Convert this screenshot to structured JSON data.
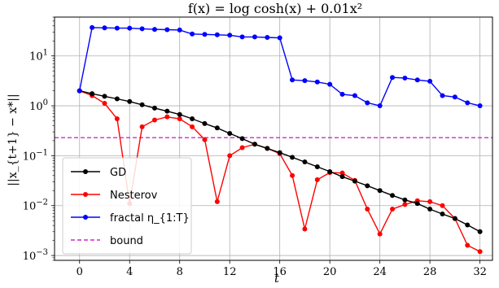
{
  "chart_data": {
    "type": "line",
    "title": "f(x) = log cosh(x) + 0.01x²",
    "xlabel": "t",
    "ylabel": "||x_{t+1} − x*||",
    "xlim": [
      -2,
      33
    ],
    "ylim": [
      0.0008,
      60
    ],
    "yscale": "log",
    "grid": true,
    "legend_position": "lower-left",
    "x_ticks": [
      0,
      4,
      8,
      12,
      16,
      20,
      24,
      28,
      32
    ],
    "y_ticks": [
      {
        "value": 0.001,
        "base": "10",
        "exp": "−3"
      },
      {
        "value": 0.01,
        "base": "10",
        "exp": "−2"
      },
      {
        "value": 0.1,
        "base": "10",
        "exp": "−1"
      },
      {
        "value": 1,
        "base": "10",
        "exp": "0"
      },
      {
        "value": 10,
        "base": "10",
        "exp": "1"
      }
    ],
    "x": [
      0,
      1,
      2,
      3,
      4,
      5,
      6,
      7,
      8,
      9,
      10,
      11,
      12,
      13,
      14,
      15,
      16,
      17,
      18,
      19,
      20,
      21,
      22,
      23,
      24,
      25,
      26,
      27,
      28,
      29,
      30,
      31,
      32
    ],
    "series": [
      {
        "name": "GD",
        "color": "#000000",
        "values": [
          2.0,
          1.75,
          1.55,
          1.38,
          1.22,
          1.05,
          0.9,
          0.78,
          0.67,
          0.55,
          0.44,
          0.36,
          0.28,
          0.22,
          0.17,
          0.14,
          0.115,
          0.093,
          0.075,
          0.06,
          0.048,
          0.038,
          0.031,
          0.025,
          0.02,
          0.016,
          0.013,
          0.011,
          0.0085,
          0.0068,
          0.0055,
          0.0041,
          0.003
        ]
      },
      {
        "name": "Nesterov",
        "color": "#ff0000",
        "values": [
          2.0,
          1.6,
          1.12,
          0.55,
          0.011,
          0.38,
          0.52,
          0.6,
          0.55,
          0.38,
          0.21,
          0.012,
          0.1,
          0.145,
          0.17,
          0.14,
          0.11,
          0.04,
          0.0034,
          0.033,
          0.046,
          0.045,
          0.032,
          0.0085,
          0.0027,
          0.0085,
          0.0105,
          0.0125,
          0.012,
          0.01,
          0.0055,
          0.0016,
          0.0012
        ]
      },
      {
        "name": "fractal η_{1:T}",
        "color": "#0000ff",
        "values": [
          2.0,
          37,
          36.5,
          36,
          36,
          35,
          34,
          33.5,
          33,
          27.5,
          27,
          26.5,
          26,
          24,
          24,
          23.5,
          23,
          3.3,
          3.2,
          3.0,
          2.7,
          1.7,
          1.6,
          1.15,
          1.0,
          3.7,
          3.6,
          3.3,
          3.1,
          1.6,
          1.5,
          1.15,
          1.0
        ]
      }
    ],
    "reference_lines": [
      {
        "name": "bound",
        "color": "#c000c0",
        "style": "dashed",
        "y": 0.23
      }
    ]
  }
}
